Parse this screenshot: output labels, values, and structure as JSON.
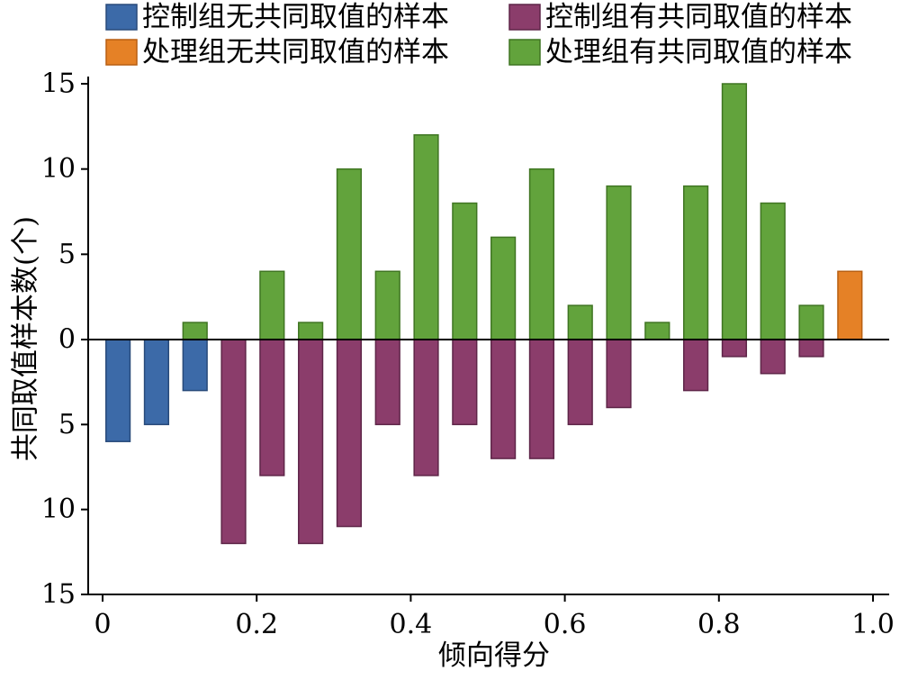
{
  "chart_data": {
    "type": "bar",
    "title": "",
    "xlabel": "倾向得分",
    "ylabel": "共同取值样本数(个)",
    "xlim": [
      0,
      1.0
    ],
    "ylim_top": [
      0,
      15
    ],
    "ylim_bottom": [
      0,
      15
    ],
    "x_ticks": [
      "0",
      "0.2",
      "0.4",
      "0.6",
      "0.8",
      "1.0"
    ],
    "x_tick_values": [
      0,
      0.2,
      0.4,
      0.6,
      0.8,
      1.0
    ],
    "y_ticks_top": [
      "0",
      "5",
      "10",
      "15"
    ],
    "y_tick_values_top": [
      0,
      5,
      10,
      15
    ],
    "y_ticks_bottom": [
      "5",
      "10",
      "15"
    ],
    "y_tick_values_bottom": [
      5,
      10,
      15
    ],
    "grid": false,
    "legend_position": "top",
    "bin_width": 0.04,
    "series": [
      {
        "name": "控制组无共同取值的样本",
        "color": "#3c6aa8",
        "stroke": "#284a7a",
        "side": "below",
        "x": [
          0.02,
          0.07,
          0.12
        ],
        "values": [
          6,
          5,
          3
        ]
      },
      {
        "name": "控制组有共同取值的样本",
        "color": "#8b3d6b",
        "stroke": "#5e2548",
        "side": "below",
        "x": [
          0.17,
          0.22,
          0.27,
          0.32,
          0.37,
          0.42,
          0.47,
          0.52,
          0.57,
          0.62,
          0.67,
          0.77,
          0.82,
          0.87,
          0.92
        ],
        "values": [
          12,
          8,
          12,
          11,
          5,
          8,
          5,
          7,
          7,
          5,
          4,
          3,
          1,
          2,
          1
        ]
      },
      {
        "name": "处理组无共同取值的样本",
        "color": "#e58126",
        "stroke": "#b85f12",
        "side": "above",
        "x": [
          0.97
        ],
        "values": [
          4
        ]
      },
      {
        "name": "处理组有共同取值的样本",
        "color": "#62a33c",
        "stroke": "#3f7522",
        "side": "above",
        "x": [
          0.12,
          0.22,
          0.27,
          0.32,
          0.37,
          0.42,
          0.47,
          0.52,
          0.57,
          0.62,
          0.67,
          0.72,
          0.77,
          0.82,
          0.87,
          0.92
        ],
        "values": [
          1,
          4,
          1,
          10,
          4,
          12,
          8,
          6,
          10,
          2,
          9,
          1,
          9,
          15,
          8,
          2
        ]
      }
    ]
  }
}
